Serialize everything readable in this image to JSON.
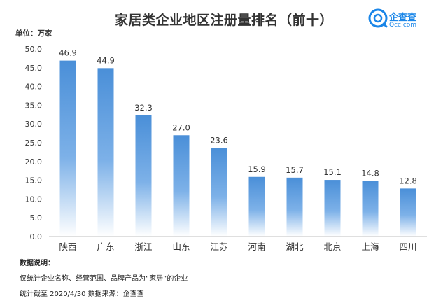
{
  "title": "家居类企业地区注册量排名（前十）",
  "unit_label": "单位：万家",
  "logo": {
    "name": "企查查",
    "domain": "Qcc.com"
  },
  "notes": {
    "heading": "数据说明：",
    "line1": "仅统计企业名称、经营范围、品牌产品为“家居”的企业",
    "line2": "统计截至 2020/4/30    数据来源：企查查"
  },
  "colors": {
    "bar_top": "#4a8fd8",
    "bar_bottom": "#ffffff",
    "axis": "#bfbfbf",
    "text": "#333333"
  },
  "chart_data": {
    "type": "bar",
    "title": "家居类企业地区注册量排名（前十）",
    "ylabel": "单位：万家",
    "categories": [
      "陕西",
      "广东",
      "浙江",
      "山东",
      "江苏",
      "河南",
      "湖北",
      "北京",
      "上海",
      "四川"
    ],
    "values": [
      46.9,
      44.9,
      32.3,
      27.0,
      23.6,
      15.9,
      15.7,
      15.1,
      14.8,
      12.8
    ],
    "value_labels": [
      "46.9",
      "44.9",
      "32.3",
      "27.0",
      "23.6",
      "15.9",
      "15.7",
      "15.1",
      "14.8",
      "12.8"
    ],
    "ylim": [
      0,
      50
    ],
    "yticks": [
      "0.0",
      "5.0",
      "10.0",
      "15.0",
      "20.0",
      "25.0",
      "30.0",
      "35.0",
      "40.0",
      "45.0",
      "50.0"
    ],
    "grid": false,
    "legend": "none"
  }
}
